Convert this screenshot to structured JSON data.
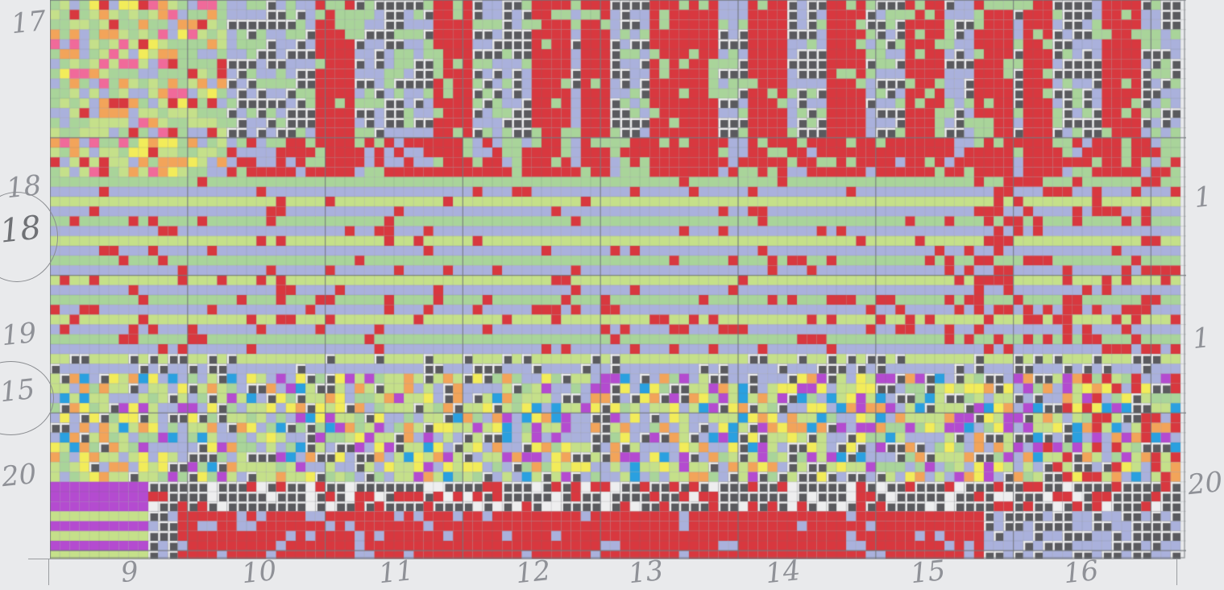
{
  "row_labels": [
    "17",
    "18",
    "18",
    "19",
    "15",
    "20"
  ],
  "column_labels": [
    "9",
    "10",
    "11",
    "12",
    "13",
    "14",
    "15",
    "16"
  ],
  "right_labels": [
    "1",
    "1",
    "20"
  ],
  "palette": {
    "paper": "#e9eaec",
    "grid": "#6f7378",
    "red": "#d8383f",
    "lavender": "#aab1dc",
    "light_green": "#c5e08a",
    "green": "#a9d49a",
    "black_square": "#5a5a5e",
    "white_cell": "#eeeeef",
    "purple": "#b44bd0",
    "orange": "#f2a45a",
    "yellow": "#f2ec5a",
    "pink": "#f06a9a",
    "cyan": "#2aa0e0"
  }
}
